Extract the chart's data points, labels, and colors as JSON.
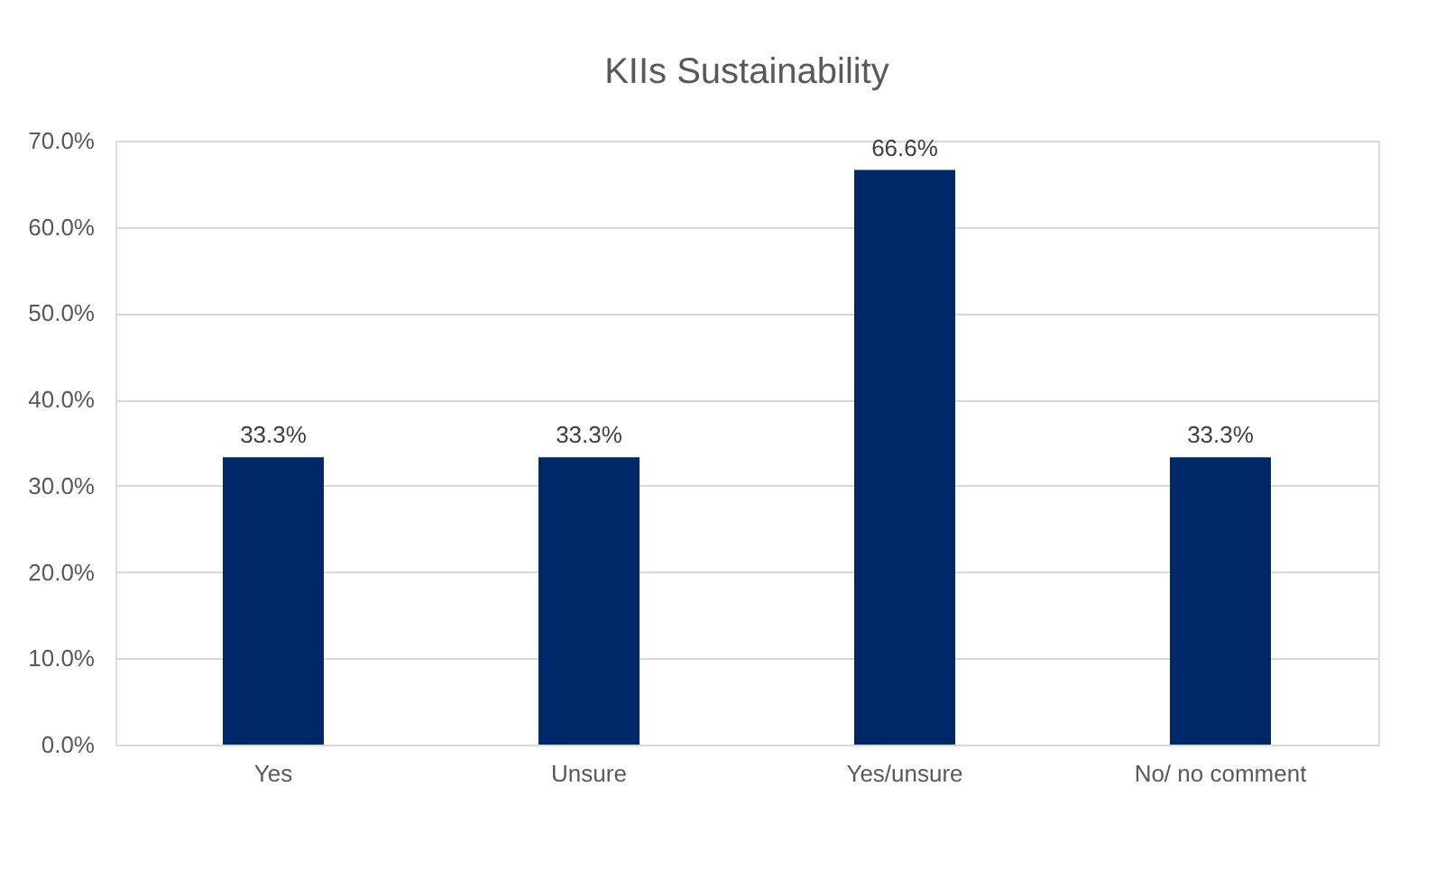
{
  "chart_data": {
    "type": "bar",
    "title": "KIIs Sustainability",
    "categories": [
      "Yes",
      "Unsure",
      "Yes/unsure",
      "No/ no comment"
    ],
    "values": [
      33.3,
      33.3,
      66.6,
      33.3
    ],
    "value_labels": [
      "33.3%",
      "33.3%",
      "66.6%",
      "33.3%"
    ],
    "color": "#002868",
    "ylim": [
      0,
      70
    ],
    "yticks": [
      {
        "value": 0,
        "label": "0.0%"
      },
      {
        "value": 10,
        "label": "10.0%"
      },
      {
        "value": 20,
        "label": "20.0%"
      },
      {
        "value": 30,
        "label": "30.0%"
      },
      {
        "value": 40,
        "label": "40.0%"
      },
      {
        "value": 50,
        "label": "50.0%"
      },
      {
        "value": 60,
        "label": "60.0%"
      },
      {
        "value": 70,
        "label": "70.0%"
      }
    ],
    "grid": "y"
  }
}
